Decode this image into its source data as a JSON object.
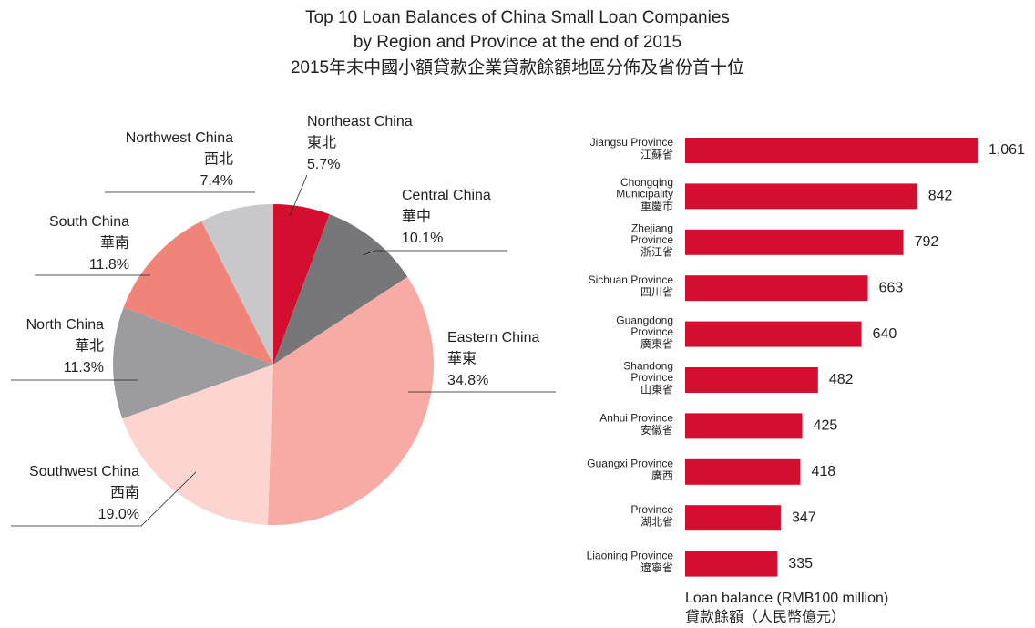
{
  "title": [
    "Top 10 Loan Balances of China Small Loan Companies",
    "by Region and Province at the end of 2015",
    "2015年末中國小額貸款企業貸款餘額地區分佈及省份首十位"
  ],
  "chart_data": [
    {
      "type": "pie",
      "categories": [
        "Northeast China",
        "Central China",
        "Eastern China",
        "Southwest China",
        "North China",
        "South China",
        "Northwest China"
      ],
      "categories_zh": [
        "東北",
        "華中",
        "華東",
        "西南",
        "華北",
        "華南",
        "西北"
      ],
      "values": [
        5.7,
        10.1,
        34.8,
        19.0,
        11.3,
        11.8,
        7.4
      ],
      "value_labels": [
        "5.7%",
        "10.1%",
        "34.8%",
        "19.0%",
        "11.3%",
        "11.8%",
        "7.4%"
      ],
      "colors": [
        "#d40e2e",
        "#77777a",
        "#f7aba5",
        "#fcd4d0",
        "#9c9ca0",
        "#f08478",
        "#c8c8ca"
      ]
    },
    {
      "type": "bar",
      "orientation": "horizontal",
      "categories": [
        [
          "Jiangsu Province"
        ],
        [
          "Chongqing",
          "Municipality"
        ],
        [
          "Zhejiang",
          "Province"
        ],
        [
          "Sichuan Province"
        ],
        [
          "Guangdong",
          "Province"
        ],
        [
          "Shandong",
          "Province"
        ],
        [
          "Anhui Province"
        ],
        [
          "Guangxi Province"
        ],
        [
          "Province"
        ],
        [
          "Liaoning Province"
        ]
      ],
      "categories_zh": [
        "江蘇省",
        "重慶市",
        "浙江省",
        "四川省",
        "廣東省",
        "山東省",
        "安徽省",
        "廣西",
        "湖北省",
        "遼寧省"
      ],
      "values": [
        1061,
        842,
        792,
        663,
        640,
        482,
        425,
        418,
        347,
        335
      ],
      "value_labels": [
        "1,061",
        "842",
        "792",
        "663",
        "640",
        "482",
        "425",
        "418",
        "347",
        "335"
      ],
      "color": "#d40e2e",
      "xlim": [
        0,
        1200
      ],
      "xlabel": [
        "Loan balance (RMB100 million)",
        "貸款餘額（人民幣億元）"
      ]
    }
  ]
}
